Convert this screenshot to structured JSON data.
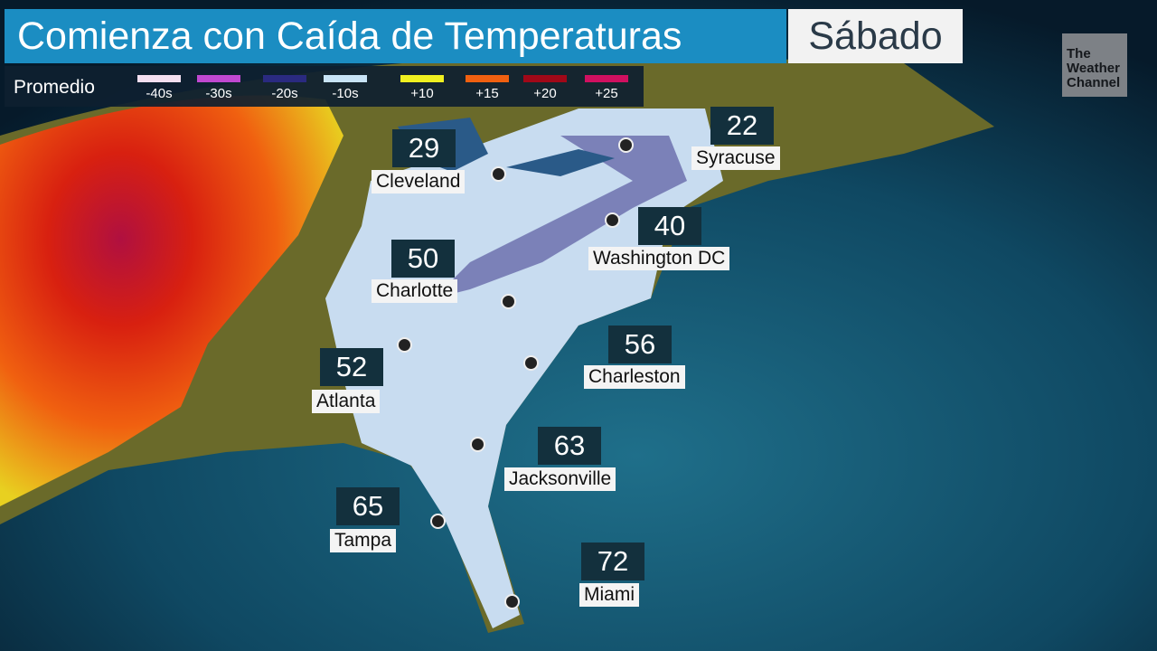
{
  "title": "Comienza con Caída de Temperaturas",
  "day": "Sábado",
  "legend": {
    "label": "Promedio",
    "items": [
      {
        "text": "-40s",
        "color": "#f3dff0"
      },
      {
        "text": "-30s",
        "color": "#c048d0"
      },
      {
        "text": "-20s",
        "color": "#2a2a80"
      },
      {
        "text": "-10s",
        "color": "#c8e4f6"
      },
      {
        "text": "+10",
        "color": "#f0f020"
      },
      {
        "text": "+15",
        "color": "#f06010"
      },
      {
        "text": "+20",
        "color": "#a00818"
      },
      {
        "text": "+25",
        "color": "#d01060"
      }
    ]
  },
  "logo": "The Weather Channel",
  "cities": [
    {
      "name": "Syracuse",
      "temp": "22"
    },
    {
      "name": "Cleveland",
      "temp": "29"
    },
    {
      "name": "Washington DC",
      "temp": "40"
    },
    {
      "name": "Charlotte",
      "temp": "50"
    },
    {
      "name": "Charleston",
      "temp": "56"
    },
    {
      "name": "Atlanta",
      "temp": "52"
    },
    {
      "name": "Jacksonville",
      "temp": "63"
    },
    {
      "name": "Tampa",
      "temp": "65"
    },
    {
      "name": "Miami",
      "temp": "72"
    }
  ]
}
